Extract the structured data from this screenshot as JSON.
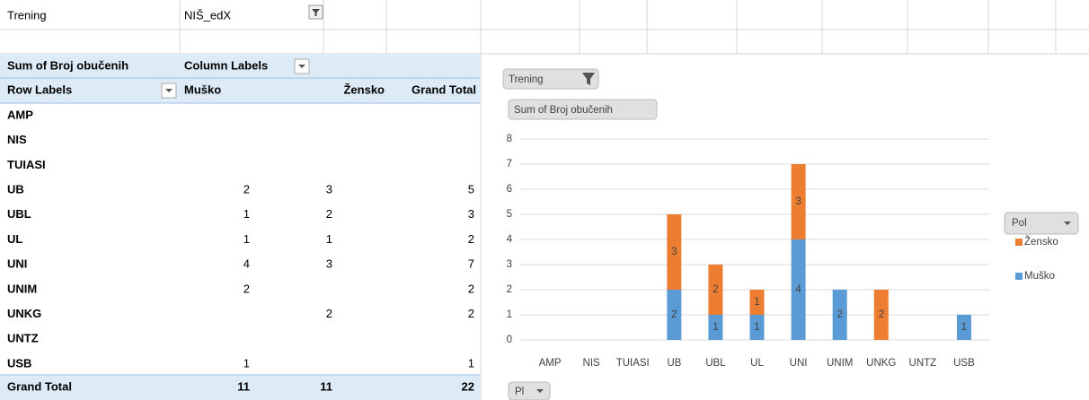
{
  "filter": {
    "label": "Trening",
    "value": "NIŠ_edX"
  },
  "pivot": {
    "value_field": "Sum of Broj obučenih",
    "column_labels": "Column Labels",
    "row_labels": "Row Labels",
    "columns": [
      "Muško",
      "Žensko",
      "Grand Total"
    ],
    "rows": [
      {
        "label": "AMP",
        "values": [
          null,
          null,
          null
        ]
      },
      {
        "label": "NIS",
        "values": [
          null,
          null,
          null
        ]
      },
      {
        "label": "TUIASI",
        "values": [
          null,
          null,
          null
        ]
      },
      {
        "label": "UB",
        "values": [
          2,
          3,
          5
        ]
      },
      {
        "label": "UBL",
        "values": [
          1,
          2,
          3
        ]
      },
      {
        "label": "UL",
        "values": [
          1,
          1,
          2
        ]
      },
      {
        "label": "UNI",
        "values": [
          4,
          3,
          7
        ]
      },
      {
        "label": "UNIM",
        "values": [
          2,
          null,
          2
        ]
      },
      {
        "label": "UNKG",
        "values": [
          null,
          2,
          2
        ]
      },
      {
        "label": "UNTZ",
        "values": [
          null,
          null,
          null
        ]
      },
      {
        "label": "USB",
        "values": [
          1,
          null,
          1
        ]
      }
    ],
    "total": {
      "label": "Grand Total",
      "values": [
        11,
        11,
        22
      ]
    }
  },
  "chart_data": {
    "type": "bar",
    "stacked": true,
    "filter_button": "Trening",
    "value_button": "Sum of Broj obučenih",
    "axis_button": "Pl",
    "legend_title": "Pol",
    "legend": "right",
    "categories": [
      "AMP",
      "NIS",
      "TUIASI",
      "UB",
      "UBL",
      "UL",
      "UNI",
      "UNIM",
      "UNKG",
      "UNTZ",
      "USB"
    ],
    "series": [
      {
        "name": "Muško",
        "color": "#5b9bd5",
        "values": [
          null,
          null,
          null,
          2,
          1,
          1,
          4,
          2,
          null,
          null,
          1
        ]
      },
      {
        "name": "Žensko",
        "color": "#ed7d31",
        "values": [
          null,
          null,
          null,
          3,
          2,
          1,
          3,
          null,
          2,
          null,
          null
        ]
      }
    ],
    "ylim": [
      0,
      8
    ],
    "yticks": [
      0,
      1,
      2,
      3,
      4,
      5,
      6,
      7,
      8
    ],
    "grid": true
  }
}
